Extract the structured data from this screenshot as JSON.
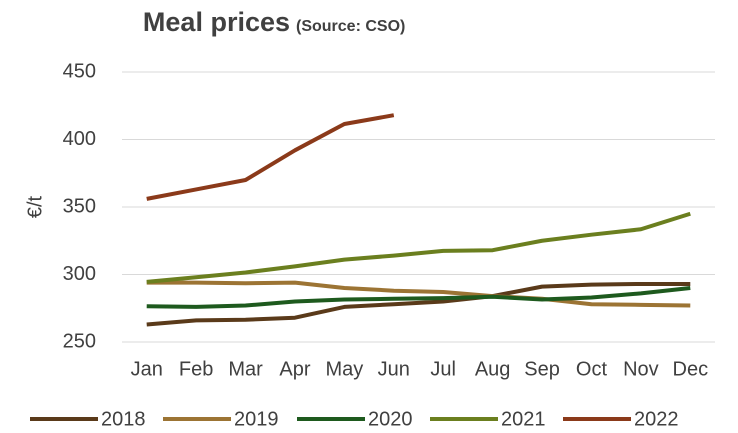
{
  "chart_data": {
    "type": "line",
    "title": "Meal prices",
    "subtitle": "(Source: CSO)",
    "y_label": "€/t",
    "categories": [
      "Jan",
      "Feb",
      "Mar",
      "Apr",
      "May",
      "Jun",
      "Jul",
      "Aug",
      "Sep",
      "Oct",
      "Nov",
      "Dec"
    ],
    "series": [
      {
        "name": "2018",
        "color": "#5a3a1a",
        "values": [
          263,
          266,
          266.5,
          268,
          276,
          278,
          280,
          284,
          291,
          292.5,
          293,
          293
        ]
      },
      {
        "name": "2019",
        "color": "#9c7434",
        "values": [
          294,
          294,
          293.5,
          294,
          290,
          288,
          287,
          284,
          282,
          278,
          277.5,
          277
        ]
      },
      {
        "name": "2020",
        "color": "#1e5a1e",
        "values": [
          276.5,
          276,
          277,
          280,
          281.5,
          282,
          282.5,
          283.5,
          281.5,
          283,
          286,
          290
        ]
      },
      {
        "name": "2021",
        "color": "#6b7f1f",
        "values": [
          294.5,
          298,
          301.5,
          306,
          311,
          314,
          317.5,
          318,
          325,
          329.5,
          333.5,
          345
        ]
      },
      {
        "name": "2022",
        "color": "#8b3a1a",
        "values": [
          356,
          363,
          370,
          392,
          411.5,
          418,
          null,
          null,
          null,
          null,
          null,
          null
        ]
      }
    ],
    "ylim": [
      250,
      450
    ],
    "yticks": [
      250,
      300,
      350,
      400,
      450
    ],
    "grid": true
  }
}
